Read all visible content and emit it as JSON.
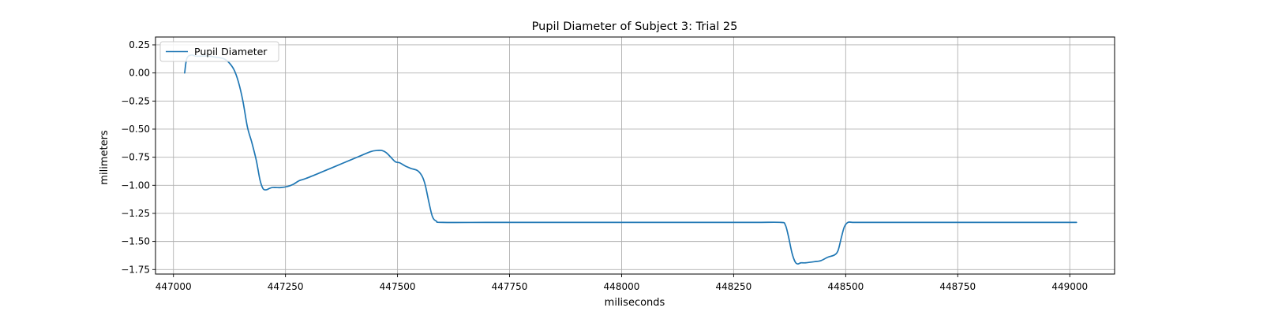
{
  "chart_data": {
    "type": "line",
    "title": "Pupil Diameter of Subject 3: Trial 25",
    "xlabel": "miliseconds",
    "ylabel": "milimeters",
    "xlim": [
      446960,
      449100
    ],
    "ylim": [
      -1.79,
      0.32
    ],
    "x_ticks": [
      447000,
      447250,
      447500,
      447750,
      448000,
      448250,
      448500,
      448750,
      449000
    ],
    "x_tick_labels": [
      "447000",
      "447250",
      "447500",
      "447750",
      "448000",
      "448250",
      "448500",
      "448750",
      "449000"
    ],
    "y_ticks": [
      0.25,
      0.0,
      -0.25,
      -0.5,
      -0.75,
      -1.0,
      -1.25,
      -1.5,
      -1.75
    ],
    "y_tick_labels": [
      "0.25",
      "0.00",
      "−0.25",
      "−0.50",
      "−0.75",
      "−1.00",
      "−1.25",
      "−1.50",
      "−1.75"
    ],
    "grid": true,
    "legend_position": "top-left",
    "series": [
      {
        "name": "Pupil Diameter",
        "color": "#1f77b4",
        "x": [
          447025,
          447030,
          447040,
          447050,
          447065,
          447080,
          447095,
          447110,
          447122,
          447135,
          447145,
          447155,
          447165,
          447175,
          447185,
          447193,
          447200,
          447207,
          447213,
          447220,
          447228,
          447240,
          447255,
          447268,
          447280,
          447295,
          447320,
          447350,
          447380,
          447410,
          447440,
          447455,
          447465,
          447475,
          447485,
          447495,
          447505,
          447518,
          447530,
          447545,
          447555,
          447562,
          447570,
          447578,
          447587,
          447600,
          447700,
          447800,
          447900,
          448000,
          448100,
          448200,
          448300,
          448355,
          448365,
          448372,
          448380,
          448387,
          448393,
          448400,
          448410,
          448430,
          448445,
          448460,
          448475,
          448483,
          448490,
          448497,
          448505,
          448515,
          448530,
          448600,
          448700,
          448800,
          448900,
          449000,
          449015
        ],
        "y": [
          0.0,
          0.13,
          0.16,
          0.15,
          0.15,
          0.15,
          0.14,
          0.13,
          0.1,
          0.03,
          -0.08,
          -0.25,
          -0.48,
          -0.62,
          -0.78,
          -0.95,
          -1.03,
          -1.04,
          -1.03,
          -1.02,
          -1.02,
          -1.02,
          -1.01,
          -0.99,
          -0.96,
          -0.94,
          -0.9,
          -0.85,
          -0.8,
          -0.75,
          -0.7,
          -0.69,
          -0.69,
          -0.71,
          -0.75,
          -0.79,
          -0.8,
          -0.83,
          -0.85,
          -0.87,
          -0.92,
          -1.0,
          -1.15,
          -1.28,
          -1.32,
          -1.33,
          -1.33,
          -1.33,
          -1.33,
          -1.33,
          -1.33,
          -1.33,
          -1.33,
          -1.33,
          -1.35,
          -1.45,
          -1.6,
          -1.68,
          -1.7,
          -1.69,
          -1.69,
          -1.68,
          -1.67,
          -1.64,
          -1.62,
          -1.58,
          -1.47,
          -1.37,
          -1.33,
          -1.33,
          -1.33,
          -1.33,
          -1.33,
          -1.33,
          -1.33,
          -1.33,
          -1.33
        ]
      }
    ]
  }
}
